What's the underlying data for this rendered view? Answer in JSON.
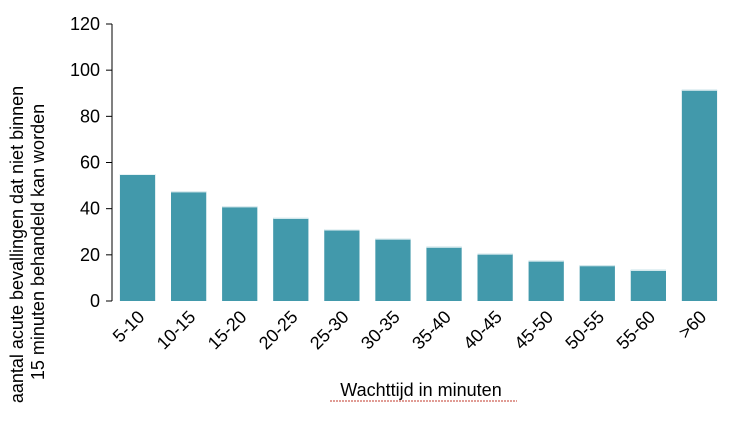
{
  "chart_data": {
    "type": "bar",
    "title": "",
    "xlabel": "Wachttijd in minuten",
    "ylabel": [
      "aantal acute bevallingen dat niet binnen",
      "15 minuten behandeld kan worden"
    ],
    "categories": [
      "5-10",
      "10-15",
      "15-20",
      "20-25",
      "25-30",
      "30-35",
      "35-40",
      "40-45",
      "45-50",
      "50-55",
      "55-60",
      ">60"
    ],
    "values": [
      55,
      47.5,
      41,
      36,
      31,
      27,
      23.5,
      20.5,
      17.5,
      15.5,
      13.5,
      91.5
    ],
    "ylim": [
      0,
      120
    ],
    "yticks": [
      0,
      20,
      40,
      60,
      80,
      100,
      120
    ],
    "grid": false,
    "colors": {
      "bar": "#4299AB",
      "axis": "#000000",
      "xlabel_underline": "#C0392B"
    }
  }
}
